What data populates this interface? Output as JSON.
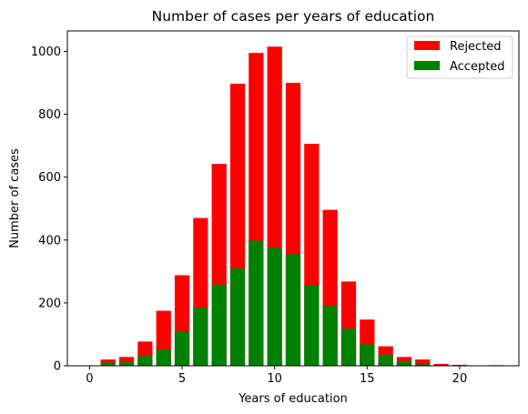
{
  "chart_data": {
    "type": "bar",
    "stacked": "overlay",
    "title": "Number of cases per years of education",
    "xlabel": "Years of education",
    "ylabel": "Number of cases",
    "xlim": [
      -1.2,
      23.2
    ],
    "ylim": [
      0,
      1065
    ],
    "xticks": [
      0,
      5,
      10,
      15,
      20
    ],
    "yticks": [
      0,
      200,
      400,
      600,
      800,
      1000
    ],
    "x": [
      1,
      2,
      3,
      4,
      5,
      6,
      7,
      8,
      9,
      10,
      11,
      12,
      13,
      14,
      15,
      16,
      17,
      18,
      19,
      20,
      22
    ],
    "series": [
      {
        "name": "Rejected",
        "color": "#ff0000",
        "values": [
          20,
          28,
          77,
          175,
          288,
          470,
          642,
          897,
          995,
          1015,
          900,
          706,
          496,
          268,
          147,
          62,
          28,
          20,
          6,
          3,
          2
        ]
      },
      {
        "name": "Accepted",
        "color": "#008000",
        "values": [
          10,
          12,
          32,
          52,
          108,
          185,
          258,
          310,
          398,
          375,
          355,
          256,
          190,
          118,
          68,
          35,
          15,
          5,
          1,
          0,
          0
        ]
      }
    ],
    "legend_position": "upper right",
    "grid": false
  }
}
